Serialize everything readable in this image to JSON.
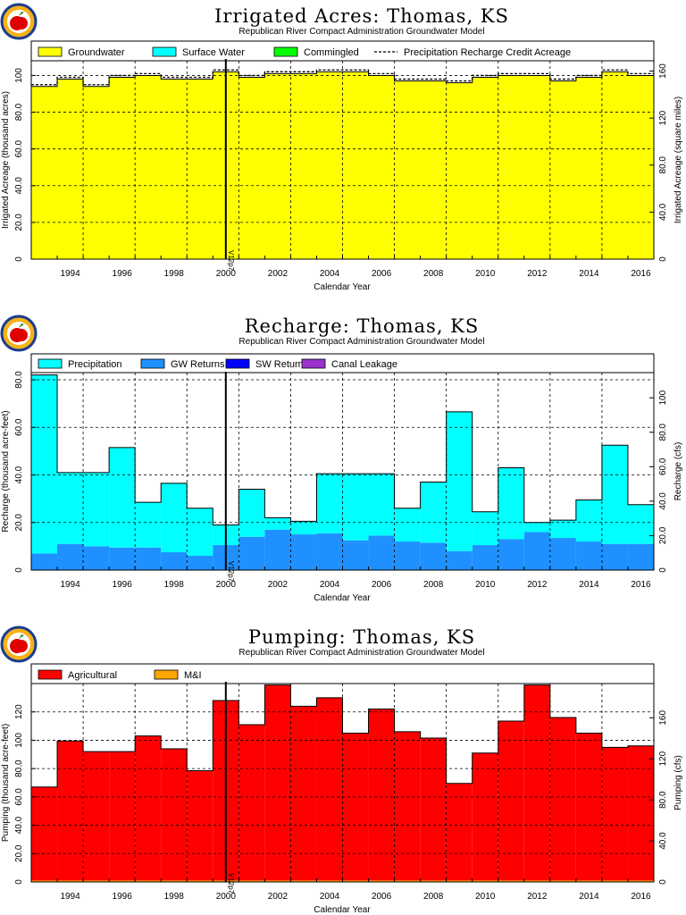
{
  "colors": {
    "groundwater": "#ffff00",
    "surface_water": "#00ffff",
    "commingled": "#00ff00",
    "precipitation": "#00ffff",
    "gw_returns": "#1e90ff",
    "sw_returns": "#0000ff",
    "canal_leakage": "#9932cc",
    "agricultural": "#ff0000",
    "mi": "#ffa500"
  },
  "chart_data": [
    {
      "type": "bar",
      "title": "Irrigated Acres: Thomas, KS",
      "subtitle": "Republican River Compact Administration Groundwater Model",
      "xlabel": "Calendar Year",
      "ylabel": "Irrigated Acreage (thousand acres)",
      "ylabel_right": "Irrigated Acreage (square miles)",
      "x": [
        1993,
        1994,
        1995,
        1996,
        1997,
        1998,
        1999,
        2000,
        2001,
        2002,
        2003,
        2004,
        2005,
        2006,
        2007,
        2008,
        2009,
        2010,
        2011,
        2012,
        2013,
        2014,
        2015,
        2016
      ],
      "xtick_labels": [
        "1994",
        "1996",
        "1998",
        "2000",
        "2002",
        "2004",
        "2006",
        "2008",
        "2010",
        "2012",
        "2014",
        "2016"
      ],
      "ylim": [
        0,
        108
      ],
      "yticks": [
        0,
        20.0,
        40.0,
        60.0,
        80.0,
        100
      ],
      "ytick_labels": [
        "0",
        "20.0",
        "40.0",
        "60.0",
        "80.0",
        "100"
      ],
      "y2ticks": [
        0,
        40.0,
        80.0,
        120,
        160
      ],
      "y2tick_labels": [
        "0",
        "40.0",
        "80.0",
        "120",
        "160"
      ],
      "y2_scale": 1.5625,
      "marker_label": "V12p7",
      "marker_x": 2000.5,
      "legend": [
        "Groundwater",
        "Surface Water",
        "Commingled",
        "Precipitation Recharge Credit Acreage"
      ],
      "series": [
        {
          "name": "Groundwater",
          "color": "groundwater",
          "values": [
            94,
            98,
            94,
            99,
            100,
            98,
            98,
            102,
            99,
            101,
            101,
            102,
            102,
            100,
            97,
            97,
            96,
            99,
            100,
            100,
            97,
            99,
            102,
            100
          ]
        },
        {
          "name": "Surface Water",
          "color": "surface_water",
          "values": [
            0,
            0,
            0,
            0,
            0,
            0,
            0,
            0,
            0,
            0,
            0,
            0,
            0,
            0,
            0,
            0,
            0,
            0,
            0,
            0,
            0,
            0,
            0,
            0
          ]
        },
        {
          "name": "Commingled",
          "color": "commingled",
          "values": [
            0,
            0,
            0,
            0,
            0,
            0,
            0,
            0,
            0,
            0,
            0,
            0,
            0,
            0,
            0,
            0,
            0,
            0,
            0,
            0,
            0,
            0,
            0,
            0
          ]
        }
      ],
      "line": {
        "name": "Precipitation Recharge Credit Acreage",
        "values": [
          95,
          99,
          95,
          100,
          101,
          99,
          99,
          103,
          100,
          102,
          102,
          103,
          103,
          101,
          98,
          98,
          97,
          100,
          101,
          101,
          98,
          100,
          103,
          101
        ]
      }
    },
    {
      "type": "bar",
      "title": "Recharge: Thomas, KS",
      "subtitle": "Republican River Compact Administration Groundwater Model",
      "xlabel": "Calendar Year",
      "ylabel": "Recharge (thousand acre-feet)",
      "ylabel_right": "Recharge (cfs)",
      "x": [
        1993,
        1994,
        1995,
        1996,
        1997,
        1998,
        1999,
        2000,
        2001,
        2002,
        2003,
        2004,
        2005,
        2006,
        2007,
        2008,
        2009,
        2010,
        2011,
        2012,
        2013,
        2014,
        2015,
        2016
      ],
      "xtick_labels": [
        "1994",
        "1996",
        "1998",
        "2000",
        "2002",
        "2004",
        "2006",
        "2008",
        "2010",
        "2012",
        "2014",
        "2016"
      ],
      "ylim": [
        0,
        83
      ],
      "yticks": [
        0,
        20.0,
        40.0,
        60.0,
        80.0
      ],
      "ytick_labels": [
        "0",
        "20.0",
        "40.0",
        "60.0",
        "80.0"
      ],
      "y2ticks": [
        0,
        20.0,
        40.0,
        60.0,
        80.0,
        100
      ],
      "y2tick_labels": [
        "0",
        "20.0",
        "40.0",
        "60.0",
        "80.0",
        "100"
      ],
      "y2_scale": 1.381,
      "marker_label": "V12p7",
      "marker_x": 2000.5,
      "legend": [
        "Precipitation",
        "GW Returns",
        "SW Returns",
        "Canal Leakage"
      ],
      "series": [
        {
          "name": "GW Returns",
          "color": "gw_returns",
          "values": [
            7,
            11,
            10,
            9.5,
            9.5,
            7.5,
            6,
            10.5,
            14,
            17,
            15,
            15.5,
            12.5,
            14.5,
            12,
            11.5,
            8,
            10.5,
            13,
            16,
            13.5,
            12,
            11,
            11
          ]
        },
        {
          "name": "SW Returns",
          "color": "sw_returns",
          "values": [
            0,
            0,
            0,
            0,
            0,
            0,
            0,
            0,
            0,
            0,
            0,
            0,
            0,
            0,
            0,
            0,
            0,
            0,
            0,
            0,
            0,
            0,
            0,
            0
          ]
        },
        {
          "name": "Canal Leakage",
          "color": "canal_leakage",
          "values": [
            0,
            0,
            0,
            0,
            0,
            0,
            0,
            0,
            0,
            0,
            0,
            0,
            0,
            0,
            0,
            0,
            0,
            0,
            0,
            0,
            0,
            0,
            0,
            0
          ]
        },
        {
          "name": "Precipitation",
          "color": "precipitation",
          "values": [
            75,
            30,
            31,
            42,
            19,
            29,
            20,
            8.5,
            20,
            5,
            5.5,
            25,
            28,
            26,
            14,
            25.5,
            58.5,
            14,
            30,
            4,
            7.5,
            17.5,
            41.5,
            16.5
          ]
        }
      ]
    },
    {
      "type": "bar",
      "title": "Pumping: Thomas, KS",
      "subtitle": "Republican River Compact Administration Groundwater Model",
      "xlabel": "Calendar Year",
      "ylabel": "Pumping (thousand acre-feet)",
      "ylabel_right": "Pumping (cfs)",
      "x": [
        1993,
        1994,
        1995,
        1996,
        1997,
        1998,
        1999,
        2000,
        2001,
        2002,
        2003,
        2004,
        2005,
        2006,
        2007,
        2008,
        2009,
        2010,
        2011,
        2012,
        2013,
        2014,
        2015,
        2016
      ],
      "xtick_labels": [
        "1994",
        "1996",
        "1998",
        "2000",
        "2002",
        "2004",
        "2006",
        "2008",
        "2010",
        "2012",
        "2014",
        "2016"
      ],
      "ylim": [
        0,
        140
      ],
      "yticks": [
        0,
        20.0,
        40.0,
        60.0,
        80.0,
        100,
        120
      ],
      "ytick_labels": [
        "0",
        "20.0",
        "40.0",
        "60.0",
        "80.0",
        "100",
        "120"
      ],
      "y2ticks": [
        0,
        40.0,
        80.0,
        120,
        160
      ],
      "y2tick_labels": [
        "0",
        "40.0",
        "80.0",
        "120",
        "160"
      ],
      "y2_scale": 1.381,
      "marker_label": "V12p7",
      "marker_x": 2000.5,
      "legend": [
        "Agricultural",
        "M&I"
      ],
      "series": [
        {
          "name": "M&I",
          "color": "mi",
          "values": [
            1,
            1,
            1,
            1,
            1,
            1,
            1,
            1,
            1,
            1,
            1,
            1,
            1,
            1,
            1,
            1,
            1,
            1,
            1,
            1,
            1,
            1,
            1,
            1
          ]
        },
        {
          "name": "Agricultural",
          "color": "agricultural",
          "values": [
            66,
            98.5,
            91,
            91,
            102,
            93,
            77.5,
            127,
            110,
            138,
            123,
            129,
            104,
            121,
            105,
            100.5,
            68.5,
            90,
            112.5,
            138,
            115,
            104,
            94,
            95
          ]
        }
      ]
    }
  ]
}
